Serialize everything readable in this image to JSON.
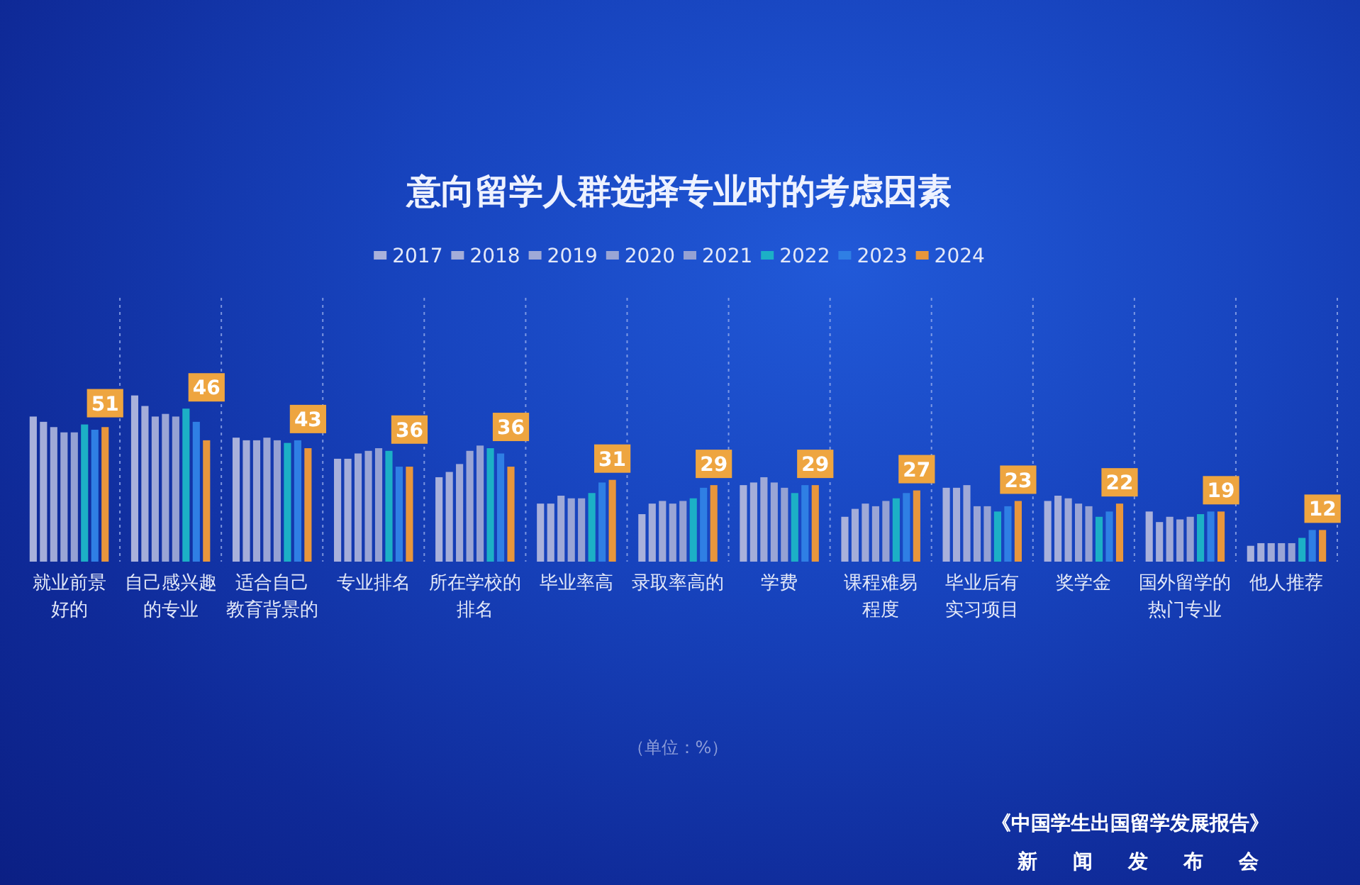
{
  "chart_data": {
    "type": "bar",
    "title": "意向留学人群选择专业时的考虑因素",
    "categories": [
      "就业前景好的",
      "自己感兴趣的专业",
      "适合自己教育背景的",
      "专业排名",
      "所在学校的排名",
      "毕业率高",
      "录取率高的",
      "学费",
      "课程难易程度",
      "毕业后有实习项目",
      "奖学金",
      "国外留学的热门专业",
      "他人推荐"
    ],
    "series": [
      {
        "name": "2017",
        "color": "#a9b1db",
        "values": [
          55,
          63,
          47,
          39,
          32,
          22,
          18,
          29,
          17,
          28,
          23,
          19,
          6
        ]
      },
      {
        "name": "2018",
        "color": "#a4add9",
        "values": [
          53,
          59,
          46,
          39,
          34,
          22,
          22,
          30,
          20,
          28,
          25,
          15,
          7
        ]
      },
      {
        "name": "2019",
        "color": "#9fa9d7",
        "values": [
          51,
          55,
          46,
          41,
          37,
          25,
          23,
          32,
          22,
          29,
          24,
          17,
          7
        ]
      },
      {
        "name": "2020",
        "color": "#9aa5d5",
        "values": [
          49,
          56,
          47,
          42,
          42,
          24,
          22,
          30,
          21,
          21,
          22,
          16,
          7
        ]
      },
      {
        "name": "2021",
        "color": "#95a1d3",
        "values": [
          49,
          55,
          46,
          43,
          44,
          24,
          23,
          28,
          23,
          21,
          21,
          17,
          7
        ]
      },
      {
        "name": "2022",
        "color": "#1cb0c6",
        "values": [
          52,
          58,
          45,
          42,
          43,
          26,
          24,
          26,
          24,
          19,
          17,
          18,
          9
        ]
      },
      {
        "name": "2023",
        "color": "#2f7fe4",
        "values": [
          50,
          53,
          46,
          36,
          41,
          30,
          28,
          29,
          26,
          21,
          19,
          19,
          12
        ]
      },
      {
        "name": "2024",
        "color": "#e8963c",
        "values": [
          51,
          46,
          43,
          36,
          36,
          31,
          29,
          29,
          27,
          23,
          22,
          19,
          12
        ],
        "value_labels": [
          "51",
          "46",
          "43",
          "36",
          "36",
          "31",
          "29",
          "29",
          "27",
          "23",
          "22",
          "19",
          "12"
        ]
      }
    ],
    "ylim": [
      0,
      100
    ],
    "tick_labels": "x",
    "grid": "x",
    "legend": "top",
    "annotations": [
      "（单位：%）",
      "《中国学生出国留学发展报告》",
      "新闻发布会"
    ]
  }
}
